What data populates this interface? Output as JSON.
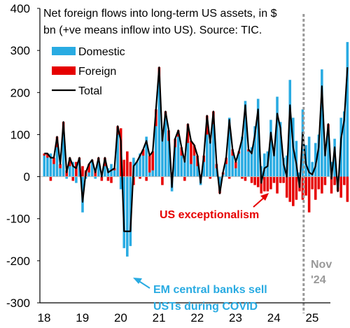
{
  "chart_data": {
    "type": "bar",
    "title_lines": [
      "Net foreign flows into long-term US assets, in $",
      "bn (+ve means inflow into US). Source: TIC."
    ],
    "ylim": [
      -300,
      400
    ],
    "yticks": [
      400,
      300,
      200,
      100,
      0,
      -100,
      -200,
      -300
    ],
    "xtick_labels": [
      "18",
      "19",
      "20",
      "21",
      "22",
      "23",
      "24",
      "25"
    ],
    "x_start_year": 2018,
    "grid": false,
    "legend_position": "top-left",
    "colors": {
      "domestic": "#29ABE2",
      "foreign": "#E60000",
      "total": "#000000",
      "marker": "#999999"
    },
    "series": [
      {
        "name": "Domestic",
        "values": [
          50,
          45,
          55,
          30,
          70,
          20,
          105,
          -5,
          25,
          35,
          -15,
          40,
          -85,
          -5,
          10,
          35,
          -5,
          40,
          10,
          25,
          20,
          30,
          15,
          100,
          -30,
          -170,
          -190,
          -165,
          45,
          35,
          55,
          50,
          95,
          10,
          15,
          120,
          230,
          105,
          145,
          85,
          -35,
          70,
          95,
          50,
          45,
          80,
          30,
          50,
          25,
          -20,
          35,
          100,
          85,
          125,
          20,
          -30,
          5,
          30,
          140,
          50,
          20,
          55,
          95,
          180,
          60,
          70,
          120,
          185,
          25,
          55,
          60,
          135,
          65,
          190,
          130,
          45,
          50,
          230,
          140,
          85,
          10,
          160,
          75,
          95,
          35,
          80,
          100,
          255,
          70,
          105,
          35,
          90,
          -25,
          140,
          155,
          320
        ]
      },
      {
        "name": "Foreign",
        "values": [
          5,
          10,
          -10,
          15,
          25,
          10,
          25,
          15,
          20,
          -10,
          35,
          5,
          25,
          15,
          20,
          5,
          15,
          5,
          -10,
          20,
          -10,
          -15,
          5,
          20,
          115,
          40,
          60,
          35,
          -20,
          0,
          -5,
          15,
          -10,
          40,
          45,
          40,
          30,
          -20,
          10,
          25,
          10,
          20,
          15,
          20,
          -10,
          45,
          55,
          25,
          25,
          5,
          15,
          45,
          -5,
          30,
          10,
          -10,
          5,
          15,
          -5,
          15,
          15,
          5,
          -5,
          -10,
          5,
          -15,
          -20,
          -25,
          -40,
          -35,
          -35,
          -30,
          -15,
          -40,
          -15,
          -15,
          -50,
          -60,
          -70,
          -55,
          -35,
          -55,
          -45,
          -85,
          -30,
          -55,
          -30,
          -40,
          -20,
          20,
          -40,
          -20,
          -10,
          -50,
          -20,
          -60
        ]
      },
      {
        "name": "Total",
        "values": [
          55,
          55,
          45,
          45,
          95,
          30,
          130,
          10,
          45,
          25,
          20,
          45,
          -60,
          10,
          30,
          40,
          10,
          45,
          0,
          45,
          10,
          15,
          20,
          120,
          85,
          -130,
          -130,
          -130,
          25,
          35,
          50,
          65,
          85,
          50,
          60,
          160,
          260,
          85,
          155,
          110,
          -25,
          90,
          110,
          70,
          35,
          125,
          85,
          75,
          50,
          -15,
          50,
          145,
          80,
          155,
          30,
          -40,
          10,
          45,
          135,
          65,
          35,
          60,
          90,
          170,
          65,
          55,
          100,
          160,
          -15,
          20,
          25,
          105,
          50,
          150,
          115,
          30,
          0,
          170,
          70,
          30,
          -25,
          105,
          30,
          10,
          5,
          25,
          70,
          215,
          50,
          125,
          -5,
          70,
          -35,
          90,
          135,
          260
        ]
      }
    ],
    "annotations": [
      {
        "text": "US exceptionalism",
        "color": "#E60000"
      },
      {
        "text_lines": [
          "EM central banks sell",
          "USTs during COVID"
        ],
        "color": "#29ABE2"
      },
      {
        "text_lines": [
          "Nov",
          "'24"
        ],
        "color": "#999999"
      }
    ]
  }
}
